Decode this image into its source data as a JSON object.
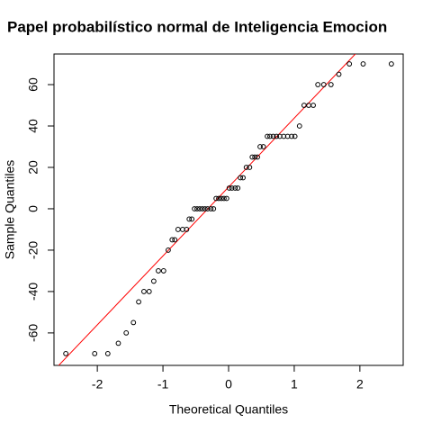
{
  "chart_data": {
    "type": "scatter",
    "title": "Papel probabilístico normal de Inteligencia Emocion",
    "x_label": "Theoretical Quantiles",
    "y_label": "Sample Quantiles",
    "x": [
      -2.48,
      -2.04,
      -1.84,
      -1.68,
      -1.56,
      -1.45,
      -1.37,
      -1.29,
      -1.21,
      -1.14,
      -1.07,
      -0.99,
      -0.92,
      -0.86,
      -0.82,
      -0.77,
      -0.7,
      -0.64,
      -0.6,
      -0.56,
      -0.52,
      -0.48,
      -0.44,
      -0.4,
      -0.36,
      -0.32,
      -0.27,
      -0.23,
      -0.19,
      -0.15,
      -0.11,
      -0.07,
      -0.03,
      0.01,
      0.05,
      0.1,
      0.14,
      0.18,
      0.22,
      0.27,
      0.32,
      0.36,
      0.4,
      0.44,
      0.48,
      0.53,
      0.59,
      0.63,
      0.68,
      0.73,
      0.78,
      0.84,
      0.9,
      0.96,
      1.01,
      1.08,
      1.15,
      1.22,
      1.29,
      1.36,
      1.45,
      1.56,
      1.68,
      1.84,
      2.05,
      2.48
    ],
    "values": [
      -70,
      -70,
      -70,
      -65,
      -60,
      -55,
      -45,
      -40,
      -40,
      -35,
      -30,
      -30,
      -20,
      -15,
      -15,
      -10,
      -10,
      -10,
      -5,
      -5,
      0,
      0,
      0,
      0,
      0,
      0,
      0,
      0,
      5,
      5,
      5,
      5,
      5,
      10,
      10,
      10,
      10,
      15,
      15,
      20,
      20,
      25,
      25,
      25,
      30,
      30,
      35,
      35,
      35,
      35,
      35,
      35,
      35,
      35,
      35,
      40,
      50,
      50,
      50,
      60,
      60,
      60,
      65,
      70,
      70,
      70
    ],
    "point_color": "#000000",
    "line": {
      "slope": 33.3,
      "intercept": 10.5,
      "color": "#ff0000"
    },
    "xlim": [
      -2.66,
      2.66
    ],
    "ylim": [
      -75.7,
      74.8
    ],
    "xticks": [
      -2,
      -1,
      0,
      1,
      2
    ],
    "yticks": [
      -60,
      -40,
      -20,
      0,
      20,
      40,
      60
    ]
  }
}
